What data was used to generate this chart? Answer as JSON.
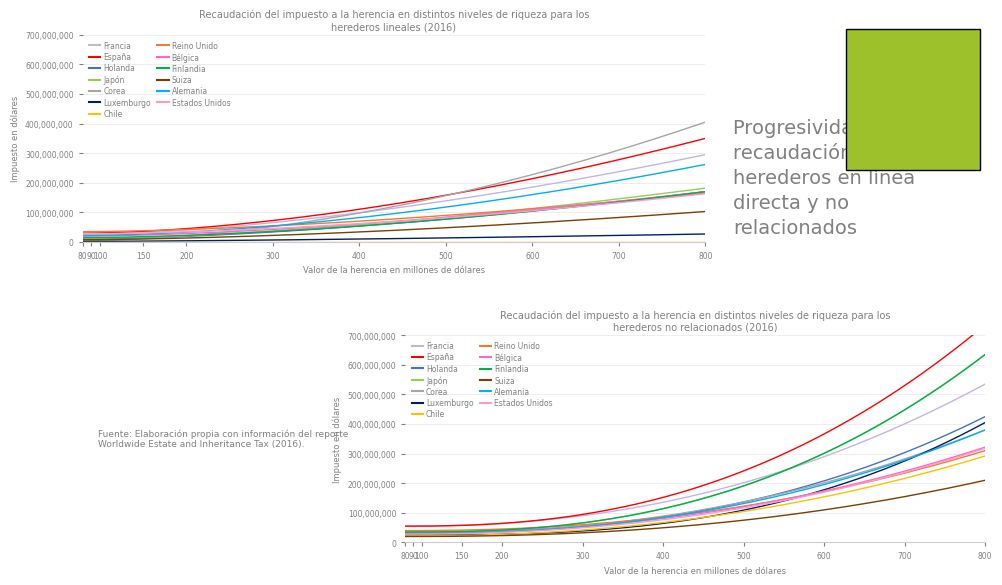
{
  "title_linear": "Recaudación del impuesto a la herencia en distintos niveles de riqueza para los\nherederos lineales (2016)",
  "title_nonlinear": "Recaudación del impuesto a la herencia en distintos niveles de riqueza para los\nherederos no relacionados (2016)",
  "xlabel": "Valor de la herencia en millones de dólares",
  "ylabel": "Impuesto en dólares",
  "source_text": "Fuente: Elaboración propia con información del reporte\nWorldwide Estate and Inheritance Tax (2016).",
  "sidebar_text": "Progresividad de la\nrecaudación entre\nherederos en línea\ndirecta y no\nrelacionados",
  "sidebar_color": "#9DC12B",
  "countries": [
    "Francia",
    "España",
    "Holanda",
    "Japón",
    "Corea",
    "Luxemburgo",
    "Chile",
    "Reino Unido",
    "Bélgica",
    "Finlandia",
    "Suiza",
    "Alemania",
    "Estados Unidos"
  ],
  "colors": {
    "Francia": "#C5B4E3",
    "España": "#FF0000",
    "Holanda": "#4472C4",
    "Japón": "#92D050",
    "Corea": "#A6A6A6",
    "Luxemburgo": "#002060",
    "Chile": "#FFC000",
    "Reino Unido": "#ED7D31",
    "Bélgica": "#FF66CC",
    "Finlandia": "#00B050",
    "Suiza": "#7B3F00",
    "Alemania": "#00B0F0",
    "Estados Unidos": "#FF99CC"
  },
  "linear_params": {
    "Francia": {
      "scale": 270000000,
      "exp": 1.6,
      "base": 25000000
    },
    "España": {
      "scale": 320000000,
      "exp": 1.7,
      "base": 30000000
    },
    "Holanda": {
      "scale": 160000000,
      "exp": 1.6,
      "base": 10000000
    },
    "Japón": {
      "scale": 170000000,
      "exp": 1.6,
      "base": 12000000
    },
    "Corea": {
      "scale": 400000000,
      "exp": 1.8,
      "base": 5000000
    },
    "Luxemburgo": {
      "scale": 25000000,
      "exp": 1.4,
      "base": 2000000
    },
    "Chile": {
      "scale": 0,
      "exp": 1.0,
      "base": 0
    },
    "Reino Unido": {
      "scale": 130000000,
      "exp": 1.6,
      "base": 35000000
    },
    "Bélgica": {
      "scale": 150000000,
      "exp": 1.6,
      "base": 20000000
    },
    "Finlandia": {
      "scale": 155000000,
      "exp": 1.7,
      "base": 15000000
    },
    "Suiza": {
      "scale": 95000000,
      "exp": 1.6,
      "base": 8000000
    },
    "Alemania": {
      "scale": 240000000,
      "exp": 1.7,
      "base": 22000000
    },
    "Estados Unidos": {
      "scale": 135000000,
      "exp": 1.7,
      "base": 28000000
    }
  },
  "nonlinear_params": {
    "Francia": {
      "scale": 480000000,
      "exp": 2.2,
      "base": 55000000
    },
    "España": {
      "scale": 680000000,
      "exp": 2.4,
      "base": 55000000
    },
    "Holanda": {
      "scale": 390000000,
      "exp": 2.5,
      "base": 35000000
    },
    "Japón": {
      "scale": 600000000,
      "exp": 2.5,
      "base": 35000000
    },
    "Corea": {
      "scale": 350000000,
      "exp": 2.2,
      "base": 30000000
    },
    "Luxemburgo": {
      "scale": 380000000,
      "exp": 2.8,
      "base": 25000000
    },
    "Chile": {
      "scale": 270000000,
      "exp": 2.2,
      "base": 22000000
    },
    "Reino Unido": {
      "scale": 270000000,
      "exp": 2.2,
      "base": 40000000
    },
    "Bélgica": {
      "scale": 290000000,
      "exp": 2.2,
      "base": 32000000
    },
    "Finlandia": {
      "scale": 600000000,
      "exp": 2.5,
      "base": 35000000
    },
    "Suiza": {
      "scale": 190000000,
      "exp": 2.3,
      "base": 20000000
    },
    "Alemania": {
      "scale": 350000000,
      "exp": 2.3,
      "base": 30000000
    },
    "Estados Unidos": {
      "scale": 290000000,
      "exp": 2.2,
      "base": 28000000
    }
  },
  "ylim": [
    0,
    700000000
  ],
  "yticks": [
    0,
    100000000,
    200000000,
    300000000,
    400000000,
    500000000,
    600000000,
    700000000
  ],
  "xticks": [
    80,
    90,
    100,
    150,
    200,
    300,
    400,
    500,
    600,
    700,
    800
  ],
  "xmin": 80,
  "xmax": 800,
  "background_color": "#FFFFFF",
  "text_color": "#808080",
  "grid_color": "#E8E8E8",
  "title_fontsize": 7.0,
  "label_fontsize": 6.0,
  "legend_fontsize": 5.5,
  "tick_fontsize": 5.5,
  "sidebar_fontsize": 14,
  "source_fontsize": 6.5
}
